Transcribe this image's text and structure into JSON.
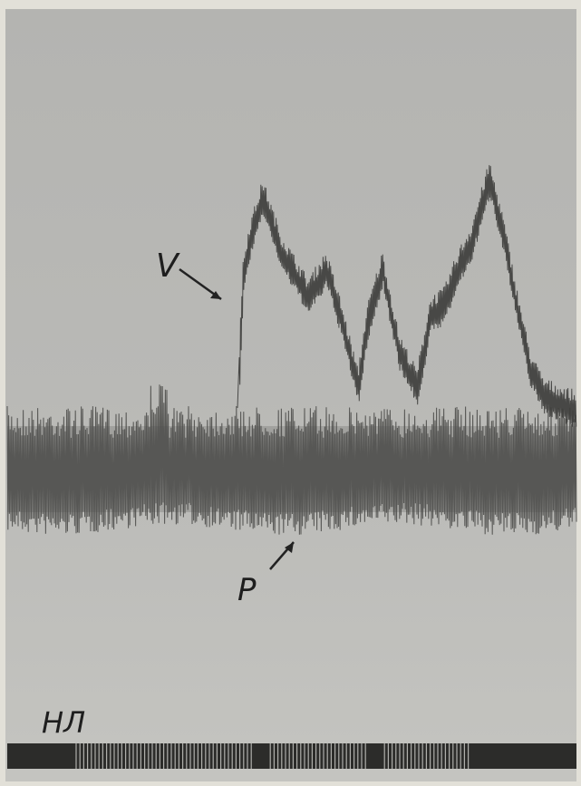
{
  "labels": {
    "v": "V",
    "p": "P",
    "stimulus": "НЛ"
  }
}
